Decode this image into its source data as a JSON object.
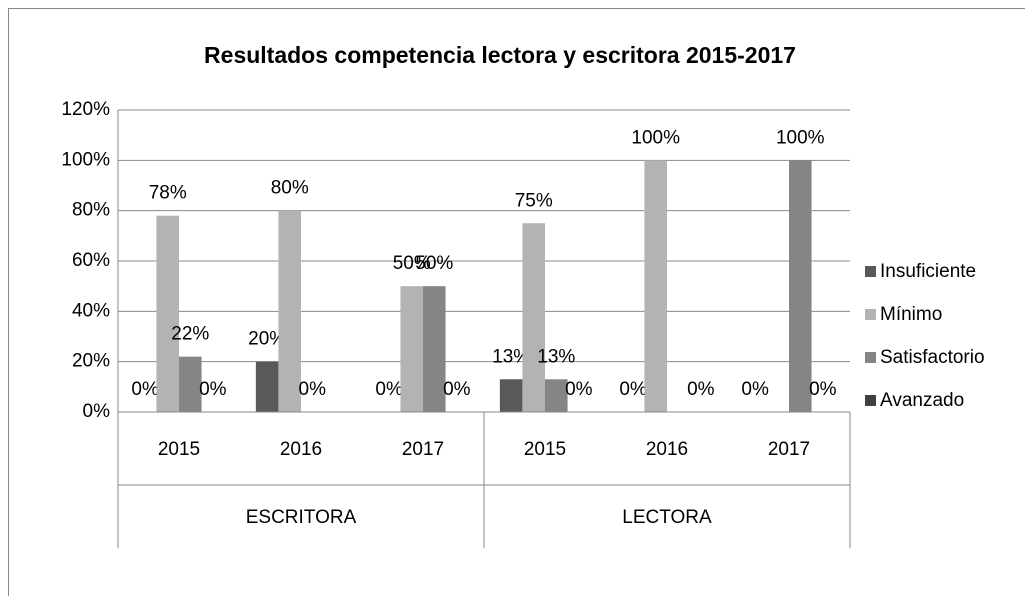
{
  "chart_data": {
    "type": "bar",
    "title": "Resultados competencia lectora y escritora 2015-2017",
    "groups": [
      {
        "name": "ESCRITORA",
        "categories": [
          "2015",
          "2016",
          "2017"
        ]
      },
      {
        "name": "LECTORA",
        "categories": [
          "2015",
          "2016",
          "2017"
        ]
      }
    ],
    "series": [
      {
        "name": "Insuficiente",
        "color": "#595959",
        "values": [
          0,
          20,
          0,
          13,
          0,
          0
        ],
        "value_labels": [
          "0%",
          "20%",
          "0%",
          "13%",
          "0%",
          "0%"
        ]
      },
      {
        "name": "Mínimo",
        "color": "#b3b3b3",
        "values": [
          78,
          80,
          50,
          75,
          100,
          null
        ],
        "value_labels": [
          "78%",
          "80%",
          "50%",
          "75%",
          "100%",
          null
        ]
      },
      {
        "name": "Satisfactorio",
        "color": "#858585",
        "values": [
          22,
          0,
          50,
          13,
          null,
          100
        ],
        "value_labels": [
          "22%",
          "0%",
          "50%",
          "13%",
          null,
          "100%"
        ]
      },
      {
        "name": "Avanzado",
        "color": "#404040",
        "values": [
          0,
          null,
          0,
          0,
          0,
          0
        ],
        "value_labels": [
          "0%",
          null,
          "0%",
          "0%",
          "0%",
          "0%"
        ]
      }
    ],
    "ylim": [
      0,
      120
    ],
    "yticks": [
      {
        "value": 0,
        "label": "0%"
      },
      {
        "value": 20,
        "label": "20%"
      },
      {
        "value": 40,
        "label": "40%"
      },
      {
        "value": 60,
        "label": "60%"
      },
      {
        "value": 80,
        "label": "80%"
      },
      {
        "value": 100,
        "label": "100%"
      },
      {
        "value": 120,
        "label": "120%"
      }
    ],
    "grid": true,
    "legend": "right"
  }
}
